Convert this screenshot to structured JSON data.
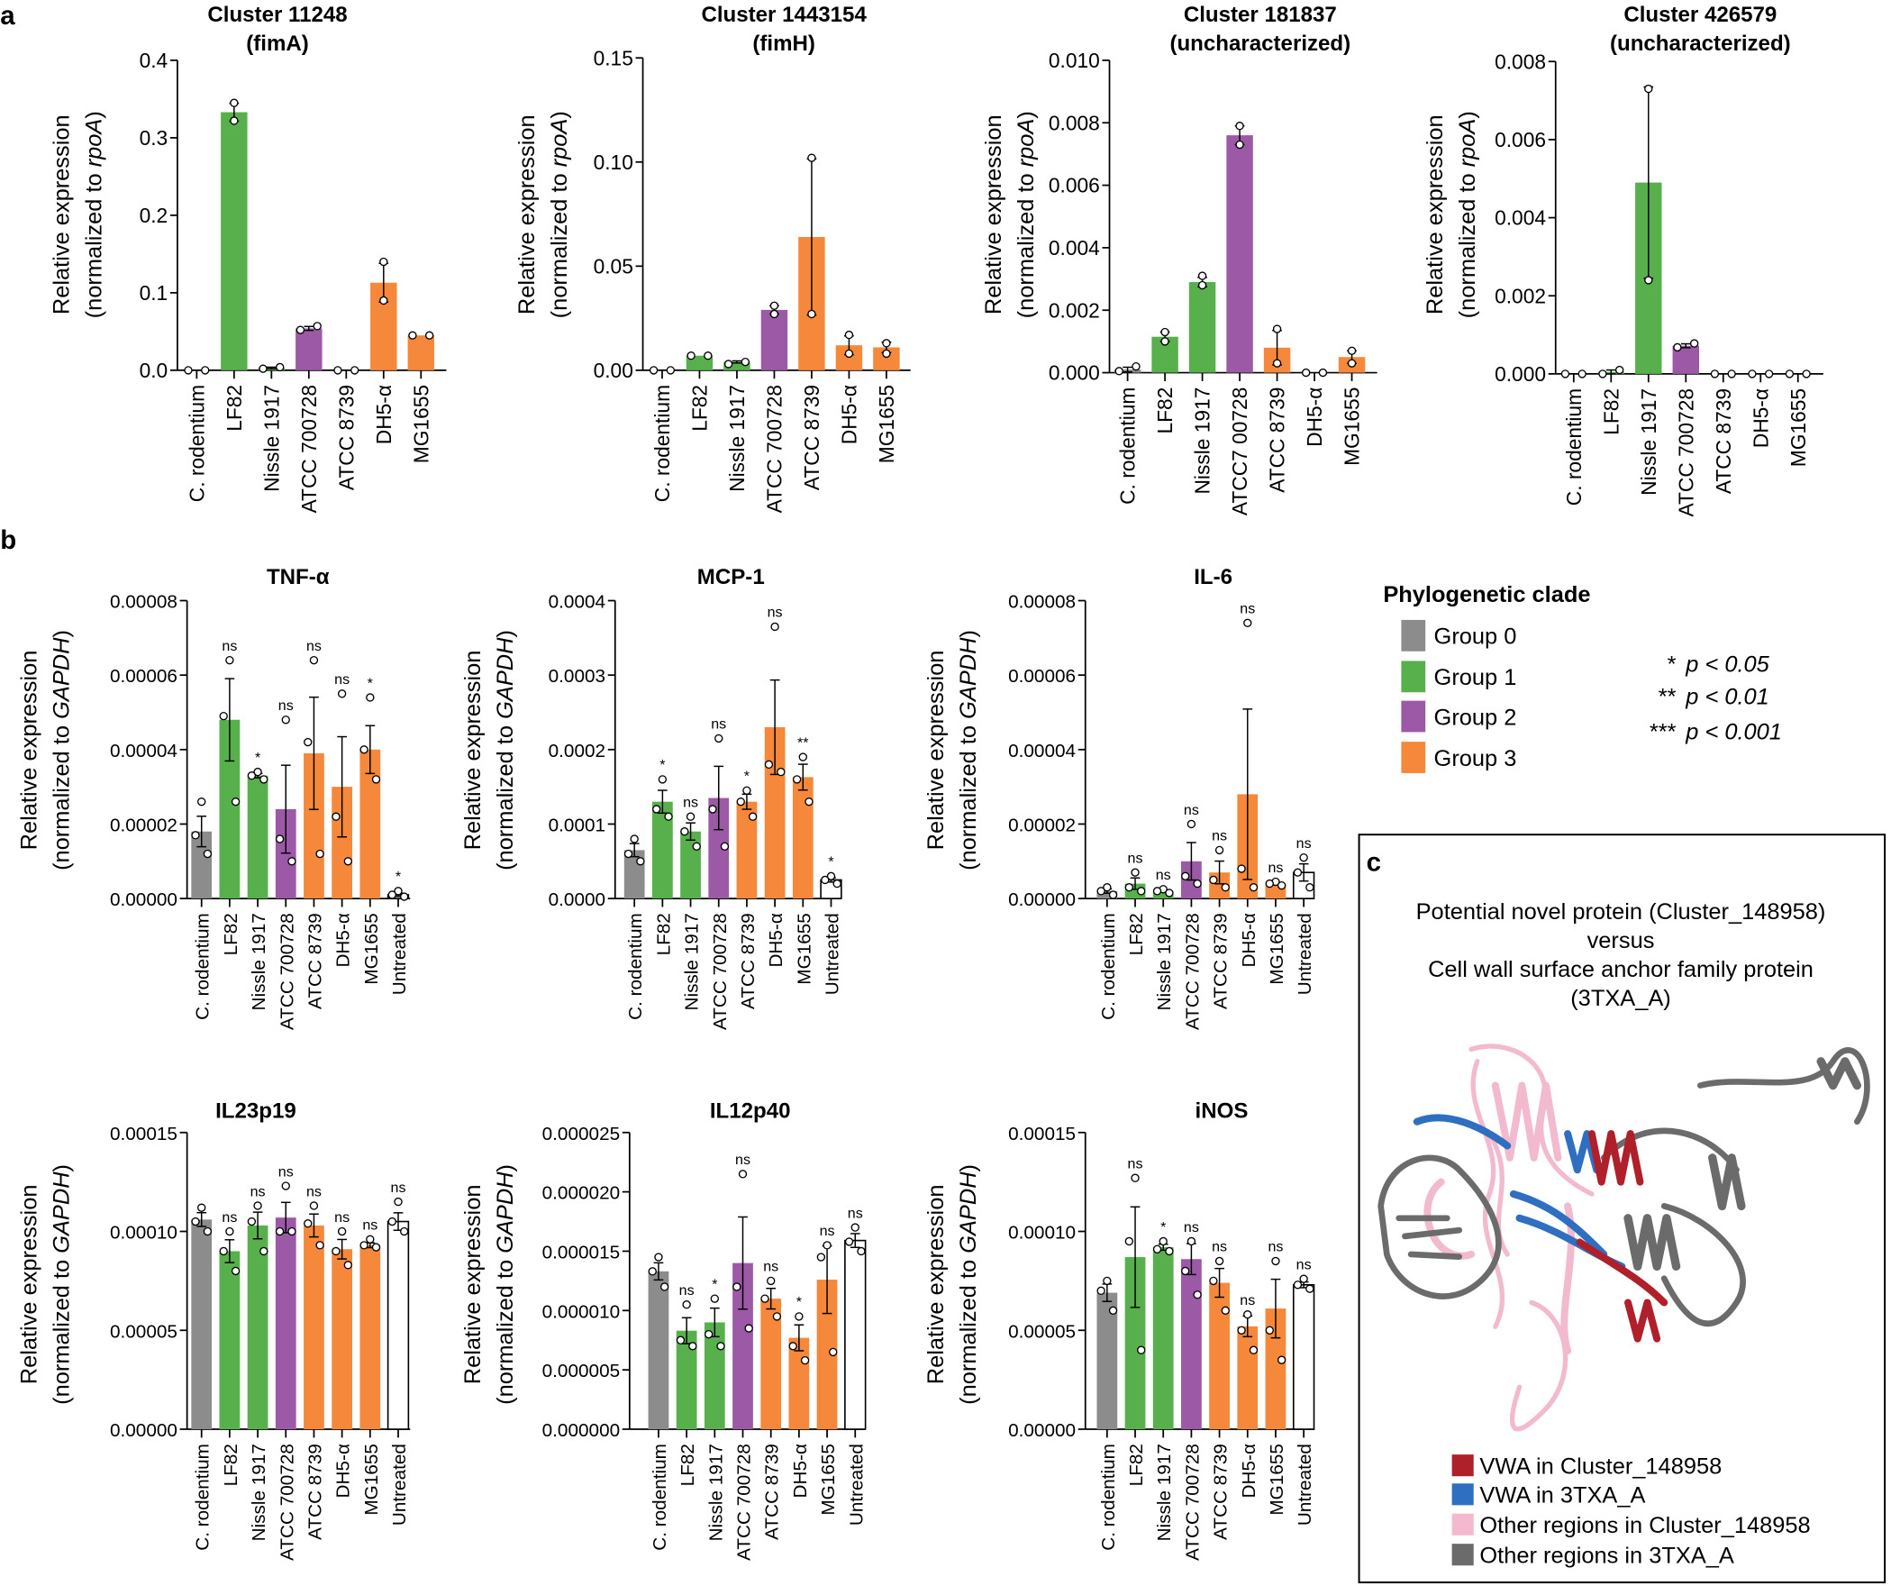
{
  "panel_letters": {
    "a": "a",
    "b": "b",
    "c": "c"
  },
  "colors": {
    "group0": "#8c8c8c",
    "group1": "#57b04b",
    "group2": "#9b59a6",
    "group3": "#f5883a",
    "untreated": "#ffffff",
    "vwa_cluster": "#b0202a",
    "vwa_3txa": "#2f6fc2",
    "other_cluster": "#f2b9cf",
    "other_3txa": "#6b6b6b"
  },
  "chart_data": [
    {
      "id": "a1",
      "type": "bar",
      "title": [
        "Cluster 11248",
        "(fimA)"
      ],
      "ylabel": [
        "Relative expression",
        "(normalized to ",
        "rpoA",
        ")"
      ],
      "categories": [
        "C. rodentium",
        "LF82",
        "Nissle 1917",
        "ATCC 700728",
        "ATCC 8739",
        "DH5-α",
        "MG1655"
      ],
      "groups": [
        0,
        1,
        1,
        2,
        3,
        3,
        3
      ],
      "ylim": [
        0,
        0.4
      ],
      "yticks": [
        0,
        0.1,
        0.2,
        0.3,
        0.4
      ],
      "ytick_labels": [
        "0.0",
        "0.1",
        "0.2",
        "0.3",
        "0.4"
      ],
      "values": [
        0,
        0.333,
        0.003,
        0.054,
        0,
        0.113,
        0.045
      ],
      "points": [
        [
          0,
          0
        ],
        [
          0.345,
          0.322
        ],
        [
          0.002,
          0.004
        ],
        [
          0.052,
          0.057
        ],
        [
          0,
          0
        ],
        [
          0.14,
          0.09
        ],
        [
          0.045,
          0.045
        ]
      ],
      "significance": []
    },
    {
      "id": "a2",
      "type": "bar",
      "title": [
        "Cluster 1443154",
        "(fimH)"
      ],
      "ylabel": [
        "Relative expression",
        "(normalized to ",
        "rpoA",
        ")"
      ],
      "categories": [
        "C. rodentium",
        "LF82",
        "Nissle 1917",
        "ATCC 700728",
        "ATCC 8739",
        "DH5-α",
        "MG1655"
      ],
      "groups": [
        0,
        1,
        1,
        2,
        3,
        3,
        3
      ],
      "ylim": [
        0,
        0.15
      ],
      "yticks": [
        0,
        0.05,
        0.1,
        0.15
      ],
      "ytick_labels": [
        "0.00",
        "0.05",
        "0.10",
        "0.15"
      ],
      "values": [
        0,
        0.007,
        0.004,
        0.029,
        0.064,
        0.012,
        0.011
      ],
      "points": [
        [
          0,
          0
        ],
        [
          0.007,
          0.007
        ],
        [
          0.003,
          0.004
        ],
        [
          0.027,
          0.031
        ],
        [
          0.102,
          0.027
        ],
        [
          0.017,
          0.008
        ],
        [
          0.013,
          0.008
        ]
      ],
      "significance": []
    },
    {
      "id": "a3",
      "type": "bar",
      "title": [
        "Cluster 181837",
        "(uncharacterized)"
      ],
      "ylabel": [
        "Relative expression",
        "(normalized to ",
        "rpoA",
        ")"
      ],
      "categories": [
        "C. rodentium",
        "LF82",
        "Nissle 1917",
        "ATCC7 00728",
        "ATCC 8739",
        "DH5-α",
        "MG1655"
      ],
      "groups": [
        0,
        1,
        1,
        2,
        3,
        3,
        3
      ],
      "ylim": [
        0,
        0.01
      ],
      "yticks": [
        0,
        0.002,
        0.004,
        0.006,
        0.008,
        0.01
      ],
      "ytick_labels": [
        "0.000",
        "0.002",
        "0.004",
        "0.006",
        "0.008",
        "0.010"
      ],
      "values": [
        0.0001,
        0.00115,
        0.0029,
        0.0076,
        0.0008,
        0,
        0.0005
      ],
      "points": [
        [
          5e-05,
          0.0002
        ],
        [
          0.001,
          0.0013
        ],
        [
          0.0028,
          0.0031
        ],
        [
          0.0073,
          0.0079
        ],
        [
          0.0003,
          0.0014
        ],
        [
          0,
          0
        ],
        [
          0.0003,
          0.0007
        ]
      ],
      "significance": []
    },
    {
      "id": "a4",
      "type": "bar",
      "title": [
        "Cluster 426579",
        "(uncharacterized)"
      ],
      "ylabel": [
        "Relative expression",
        "(normalized to ",
        "rpoA",
        ")"
      ],
      "categories": [
        "C. rodentium",
        "LF82",
        "Nissle 1917",
        "ATCC 700728",
        "ATCC 8739",
        "DH5-α",
        "MG1655"
      ],
      "groups": [
        0,
        1,
        1,
        2,
        3,
        3,
        3
      ],
      "ylim": [
        0,
        0.008
      ],
      "yticks": [
        0,
        0.002,
        0.004,
        0.006,
        0.008
      ],
      "ytick_labels": [
        "0.000",
        "0.002",
        "0.004",
        "0.006",
        "0.008"
      ],
      "values": [
        0,
        5e-05,
        0.0049,
        0.00072,
        0,
        0,
        0
      ],
      "points": [
        [
          0,
          0
        ],
        [
          0,
          0.0001
        ],
        [
          0.0073,
          0.0024
        ],
        [
          0.00068,
          0.00078
        ],
        [
          0,
          0
        ],
        [
          0,
          0
        ],
        [
          0,
          0
        ]
      ],
      "significance": []
    },
    {
      "id": "b1",
      "type": "bar",
      "title": [
        "TNF-α"
      ],
      "ylabel": [
        "Relative expression",
        "(normalized to ",
        "GAPDH",
        ")"
      ],
      "categories": [
        "C. rodentium",
        "LF82",
        "Nissle 1917",
        "ATCC 700728",
        "ATCC 8739",
        "DH5-α",
        "MG1655",
        "Untreated"
      ],
      "groups": [
        0,
        1,
        1,
        2,
        3,
        3,
        3,
        4
      ],
      "ylim": [
        0,
        8e-05
      ],
      "yticks": [
        0,
        2e-05,
        4e-05,
        6e-05,
        8e-05
      ],
      "ytick_labels": [
        "0.00000",
        "0.00002",
        "0.00004",
        "0.00006",
        "0.00008"
      ],
      "values": [
        1.8e-05,
        4.8e-05,
        3.3e-05,
        2.4e-05,
        3.9e-05,
        3e-05,
        4e-05,
        1e-06
      ],
      "points": [
        [
          2.6e-05,
          1.7e-05,
          1.2e-05
        ],
        [
          6.4e-05,
          4.9e-05,
          2.6e-05
        ],
        [
          3.4e-05,
          3.3e-05,
          3.2e-05
        ],
        [
          4.8e-05,
          1.6e-05,
          1e-05
        ],
        [
          6.4e-05,
          4.2e-05,
          1.2e-05
        ],
        [
          5.5e-05,
          2.2e-05,
          1e-05
        ],
        [
          5.4e-05,
          4e-05,
          3.2e-05
        ],
        [
          2e-06,
          1e-06,
          5e-07
        ]
      ],
      "significance": [
        "",
        "ns",
        "*",
        "ns",
        "ns",
        "ns",
        "*",
        "*"
      ]
    },
    {
      "id": "b2",
      "type": "bar",
      "title": [
        "MCP-1"
      ],
      "ylabel": [
        "Relative expression",
        "(normalized to ",
        "GAPDH",
        ")"
      ],
      "categories": [
        "C. rodentium",
        "LF82",
        "Nissle 1917",
        "ATCC 700728",
        "ATCC 8739",
        "DH5-α",
        "MG1655",
        "Untreated"
      ],
      "groups": [
        0,
        1,
        1,
        2,
        3,
        3,
        3,
        4
      ],
      "ylim": [
        0,
        0.0004
      ],
      "yticks": [
        0,
        0.0001,
        0.0002,
        0.0003,
        0.0004
      ],
      "ytick_labels": [
        "0.0000",
        "0.0001",
        "0.0002",
        "0.0003",
        "0.0004"
      ],
      "values": [
        6.5e-05,
        0.00013,
        9e-05,
        0.000135,
        0.00013,
        0.00023,
        0.000163,
        2.5e-05
      ],
      "points": [
        [
          8e-05,
          6e-05,
          5e-05
        ],
        [
          0.00016,
          0.00012,
          0.00011
        ],
        [
          0.00011,
          9e-05,
          7e-05
        ],
        [
          0.000215,
          0.00012,
          7e-05
        ],
        [
          0.000145,
          0.00013,
          0.00011
        ],
        [
          0.000365,
          0.00018,
          0.00017
        ],
        [
          0.00019,
          0.00016,
          0.00013
        ],
        [
          3e-05,
          2.5e-05,
          2e-05
        ]
      ],
      "significance": [
        "",
        "*",
        "ns",
        "ns",
        "*",
        "ns",
        "**",
        "*"
      ]
    },
    {
      "id": "b3",
      "type": "bar",
      "title": [
        "IL-6"
      ],
      "ylabel": [
        "Relative expression",
        "(normalized to ",
        "GAPDH",
        ")"
      ],
      "categories": [
        "C. rodentium",
        "LF82",
        "Nissle 1917",
        "ATCC 700728",
        "ATCC 8739",
        "DH5-α",
        "MG1655",
        "Untreated"
      ],
      "groups": [
        0,
        1,
        1,
        2,
        3,
        3,
        3,
        4
      ],
      "ylim": [
        0,
        8e-05
      ],
      "yticks": [
        0,
        2e-05,
        4e-05,
        6e-05,
        8e-05
      ],
      "ytick_labels": [
        "0.00000",
        "0.00002",
        "0.00004",
        "0.00006",
        "0.00008"
      ],
      "values": [
        2e-06,
        4e-06,
        2e-06,
        1e-05,
        7e-06,
        2.8e-05,
        4e-06,
        7e-06
      ],
      "points": [
        [
          3e-06,
          2e-06,
          1e-06
        ],
        [
          7e-06,
          3e-06,
          2e-06
        ],
        [
          2.5e-06,
          2e-06,
          1.5e-06
        ],
        [
          2e-05,
          6e-06,
          4e-06
        ],
        [
          1.3e-05,
          5e-06,
          3e-06
        ],
        [
          7.4e-05,
          8e-06,
          3e-06
        ],
        [
          4.5e-06,
          4e-06,
          3.5e-06
        ],
        [
          1.1e-05,
          7e-06,
          3e-06
        ]
      ],
      "significance": [
        "",
        "ns",
        "ns",
        "ns",
        "ns",
        "ns",
        "ns",
        "ns"
      ]
    },
    {
      "id": "b4",
      "type": "bar",
      "title": [
        "IL23p19"
      ],
      "ylabel": [
        "Relative expression",
        "(normalized to ",
        "GAPDH",
        ")"
      ],
      "categories": [
        "C. rodentium",
        "LF82",
        "Nissle 1917",
        "ATCC 700728",
        "ATCC 8739",
        "DH5-α",
        "MG1655",
        "Untreated"
      ],
      "groups": [
        0,
        1,
        1,
        2,
        3,
        3,
        3,
        4
      ],
      "ylim": [
        0,
        0.00015
      ],
      "yticks": [
        0,
        5e-05,
        0.0001,
        0.00015
      ],
      "ytick_labels": [
        "0.00000",
        "0.00005",
        "0.00010",
        "0.00015"
      ],
      "values": [
        0.000106,
        9e-05,
        0.000103,
        0.000107,
        0.000103,
        9.1e-05,
        9.3e-05,
        0.000105
      ],
      "points": [
        [
          0.000112,
          0.000105,
          0.0001
        ],
        [
          0.0001,
          9e-05,
          8e-05
        ],
        [
          0.000113,
          0.000105,
          9e-05
        ],
        [
          0.000123,
          0.0001,
          0.0001
        ],
        [
          0.000113,
          0.000104,
          9.3e-05
        ],
        [
          0.0001,
          9e-05,
          8.3e-05
        ],
        [
          9.6e-05,
          9.3e-05,
          9.2e-05
        ],
        [
          0.000115,
          0.000105,
          0.0001
        ]
      ],
      "significance": [
        "",
        "ns",
        "ns",
        "ns",
        "ns",
        "ns",
        "ns",
        "ns"
      ]
    },
    {
      "id": "b5",
      "type": "bar",
      "title": [
        "IL12p40"
      ],
      "ylabel": [
        "Relative expression",
        "(normalized to ",
        "GAPDH",
        ")"
      ],
      "categories": [
        "C. rodentium",
        "LF82",
        "Nissle 1917",
        "ATCC 700728",
        "ATCC 8739",
        "DH5-α",
        "MG1655",
        "Untreated"
      ],
      "groups": [
        0,
        1,
        1,
        2,
        3,
        3,
        3,
        4
      ],
      "ylim": [
        0,
        2.5e-05
      ],
      "yticks": [
        0,
        5e-06,
        1e-05,
        1.5e-05,
        2e-05,
        2.5e-05
      ],
      "ytick_labels": [
        "0.000000",
        "0.000005",
        "0.000010",
        "0.000015",
        "0.000020",
        "0.000025"
      ],
      "values": [
        1.33e-05,
        8.3e-06,
        9e-06,
        1.4e-05,
        1.1e-05,
        7.7e-06,
        1.26e-05,
        1.59e-05
      ],
      "points": [
        [
          1.45e-05,
          1.33e-05,
          1.2e-05
        ],
        [
          1.05e-05,
          7.5e-06,
          7e-06
        ],
        [
          1.1e-05,
          8e-06,
          7e-06
        ],
        [
          2.15e-05,
          1.2e-05,
          8.5e-06
        ],
        [
          1.25e-05,
          1.1e-05,
          9.5e-06
        ],
        [
          9.5e-06,
          7e-06,
          5.8e-06
        ],
        [
          1.55e-05,
          1.45e-05,
          6.5e-06
        ],
        [
          1.7e-05,
          1.58e-05,
          1.5e-05
        ]
      ],
      "significance": [
        "",
        "ns",
        "*",
        "ns",
        "ns",
        "*",
        "ns",
        "ns"
      ]
    },
    {
      "id": "b6",
      "type": "bar",
      "title": [
        "iNOS"
      ],
      "ylabel": [
        "Relative expression",
        "(normalized to ",
        "GAPDH",
        ")"
      ],
      "categories": [
        "C. rodentium",
        "LF82",
        "Nissle 1917",
        "ATCC 700728",
        "ATCC 8739",
        "DH5-α",
        "MG1655",
        "Untreated"
      ],
      "groups": [
        0,
        1,
        1,
        2,
        3,
        3,
        3,
        4
      ],
      "ylim": [
        0,
        0.00015
      ],
      "yticks": [
        0,
        5e-05,
        0.0001,
        0.00015
      ],
      "ytick_labels": [
        "0.00000",
        "0.00005",
        "0.00010",
        "0.00015"
      ],
      "values": [
        6.9e-05,
        8.7e-05,
        9.2e-05,
        8.6e-05,
        7.4e-05,
        5.2e-05,
        6.1e-05,
        7.3e-05
      ],
      "points": [
        [
          7.5e-05,
          7e-05,
          6e-05
        ],
        [
          0.000127,
          9.5e-05,
          4e-05
        ],
        [
          9.5e-05,
          9.1e-05,
          9e-05
        ],
        [
          9.5e-05,
          8e-05,
          6.8e-05
        ],
        [
          8.5e-05,
          7.5e-05,
          6e-05
        ],
        [
          5.8e-05,
          5e-05,
          4e-05
        ],
        [
          8.5e-05,
          5e-05,
          3.5e-05
        ],
        [
          7.6e-05,
          7.3e-05,
          7.1e-05
        ]
      ],
      "significance": [
        "",
        "ns",
        "*",
        "ns",
        "ns",
        "ns",
        "ns",
        "ns"
      ]
    }
  ],
  "clade_legend": {
    "title": "Phylogenetic clade",
    "items": [
      "Group 0",
      "Group 1",
      "Group 2",
      "Group 3"
    ]
  },
  "sig_legend": [
    {
      "stars": "*",
      "text": "p < 0.05"
    },
    {
      "stars": "**",
      "text": "p < 0.01"
    },
    {
      "stars": "***",
      "text": "p < 0.001"
    }
  ],
  "panel_c": {
    "caption": [
      "Potential novel protein (Cluster_148958)",
      "versus",
      "Cell wall surface anchor family protein",
      "(3TXA_A)"
    ],
    "legend": [
      "VWA in Cluster_148958",
      "VWA in 3TXA_A",
      "Other regions in Cluster_148958",
      "Other regions in 3TXA_A"
    ]
  }
}
